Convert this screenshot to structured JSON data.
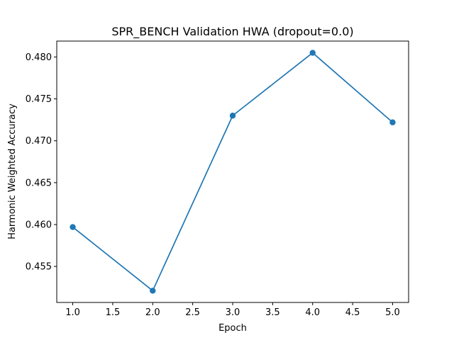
{
  "chart_data": {
    "type": "line",
    "title": "SPR_BENCH Validation HWA (dropout=0.0)",
    "xlabel": "Epoch",
    "ylabel": "Harmonic Weighted Accuracy",
    "x": [
      1,
      2,
      3,
      4,
      5
    ],
    "series": [
      {
        "values": [
          0.4597,
          0.4521,
          0.473,
          0.4805,
          0.4722
        ]
      }
    ],
    "xlim": [
      0.8,
      5.2
    ],
    "ylim": [
      0.4507,
      0.4819
    ],
    "xticks": [
      "1.0",
      "1.5",
      "2.0",
      "2.5",
      "3.0",
      "3.5",
      "4.0",
      "4.5",
      "5.0"
    ],
    "yticks": [
      "0.455",
      "0.460",
      "0.465",
      "0.470",
      "0.475",
      "0.480"
    ],
    "marker": "circle",
    "grid": false,
    "legend": "none",
    "color": "#1f77b4"
  }
}
